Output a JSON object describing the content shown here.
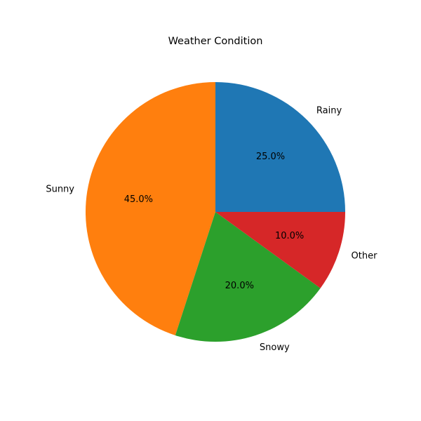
{
  "chart_data": {
    "type": "pie",
    "title": "Weather Condition",
    "slices": [
      {
        "label": "Rainy",
        "value": 25.0,
        "pct_label": "25.0%",
        "color": "#1f77b4"
      },
      {
        "label": "Sunny",
        "value": 45.0,
        "pct_label": "45.0%",
        "color": "#ff7f0e"
      },
      {
        "label": "Snowy",
        "value": 20.0,
        "pct_label": "20.0%",
        "color": "#2ca02c"
      },
      {
        "label": "Other",
        "value": 10.0,
        "pct_label": "10.0%",
        "color": "#d62728"
      }
    ],
    "start_angle_deg": 0,
    "direction": "counterclockwise",
    "legend": "none"
  }
}
